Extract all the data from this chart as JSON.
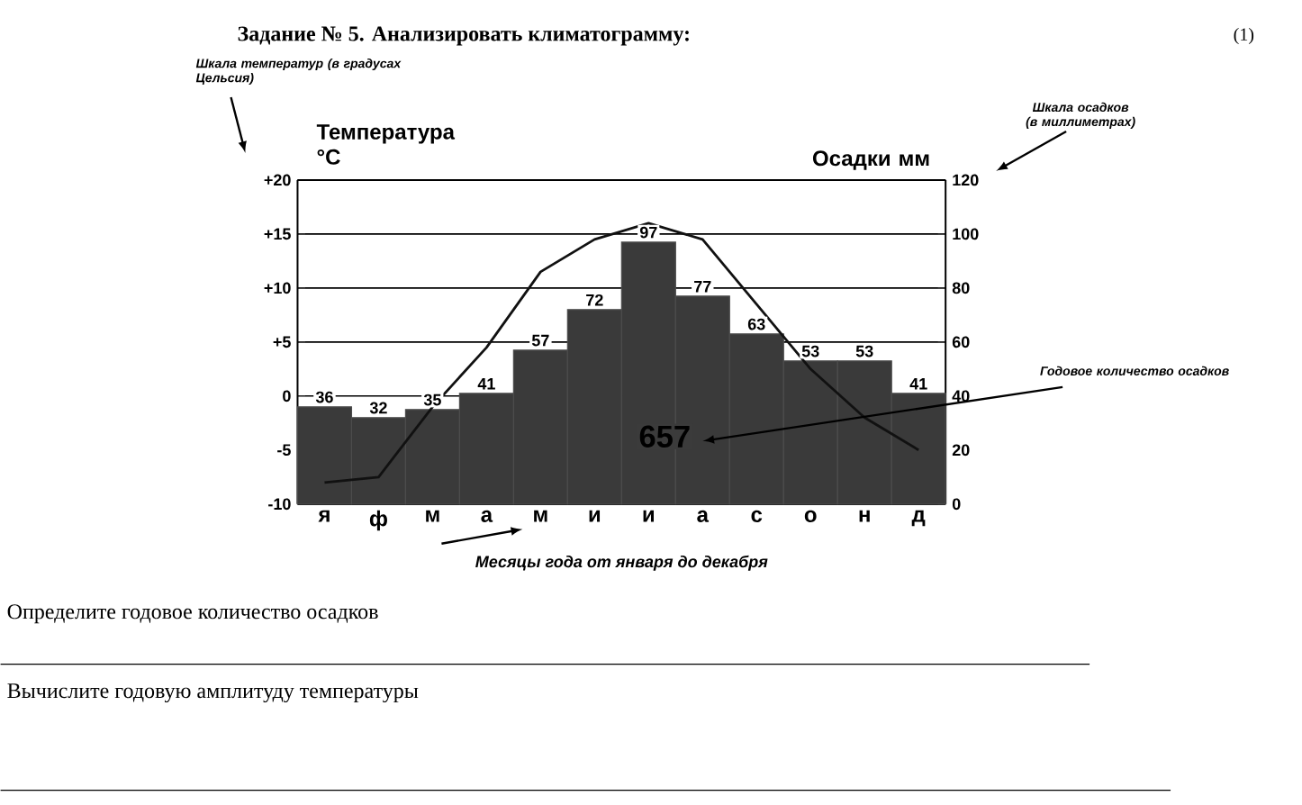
{
  "chart_data": {
    "type": "bar",
    "title": "Задание № 5. Анализировать климатограмму:",
    "xlabel": "Месяцы года от января до декабря",
    "ylabel": "Температура °C",
    "y2label": "Осадки мм",
    "categories": [
      "я",
      "ф",
      "м",
      "а",
      "м",
      "и",
      "и",
      "а",
      "с",
      "о",
      "н",
      "д"
    ],
    "series": [
      {
        "axis": "y2",
        "color": "#3a3a3a",
        "values": [
          36,
          32,
          35,
          41,
          57,
          72,
          97,
          77,
          63,
          53,
          53,
          41
        ],
        "value_labels": [
          "36",
          "32",
          "35",
          "41",
          "57",
          "72",
          "97",
          "77",
          "63",
          "53",
          "53",
          "41"
        ]
      },
      {
        "type": "line",
        "axis": "y",
        "color": "#111111",
        "values": [
          -8,
          -7.5,
          -1,
          4.5,
          11.5,
          14.5,
          16,
          14.5,
          8.5,
          2.5,
          -2,
          -5
        ]
      }
    ],
    "ylim": [
      -10,
      20
    ],
    "yticks": [
      -10,
      -5,
      0,
      {
        "value": 5,
        "label": "+5"
      },
      {
        "value": 10,
        "label": "+10"
      },
      {
        "value": 15,
        "label": "+15"
      },
      {
        "value": 20,
        "label": "+20"
      }
    ],
    "y2lim": [
      0,
      120
    ],
    "y2ticks": [
      0,
      20,
      40,
      60,
      80,
      100,
      120
    ],
    "grid": "y",
    "annotations": [
      "(1)",
      "Шкала температур (в градусах Цельсия)",
      "Шкала осадков (в миллиметрах)",
      "657",
      "Годовое количество осадков",
      "Определите годовое количество осадков",
      "Вычислите годовую  амплитуду температуры"
    ]
  }
}
